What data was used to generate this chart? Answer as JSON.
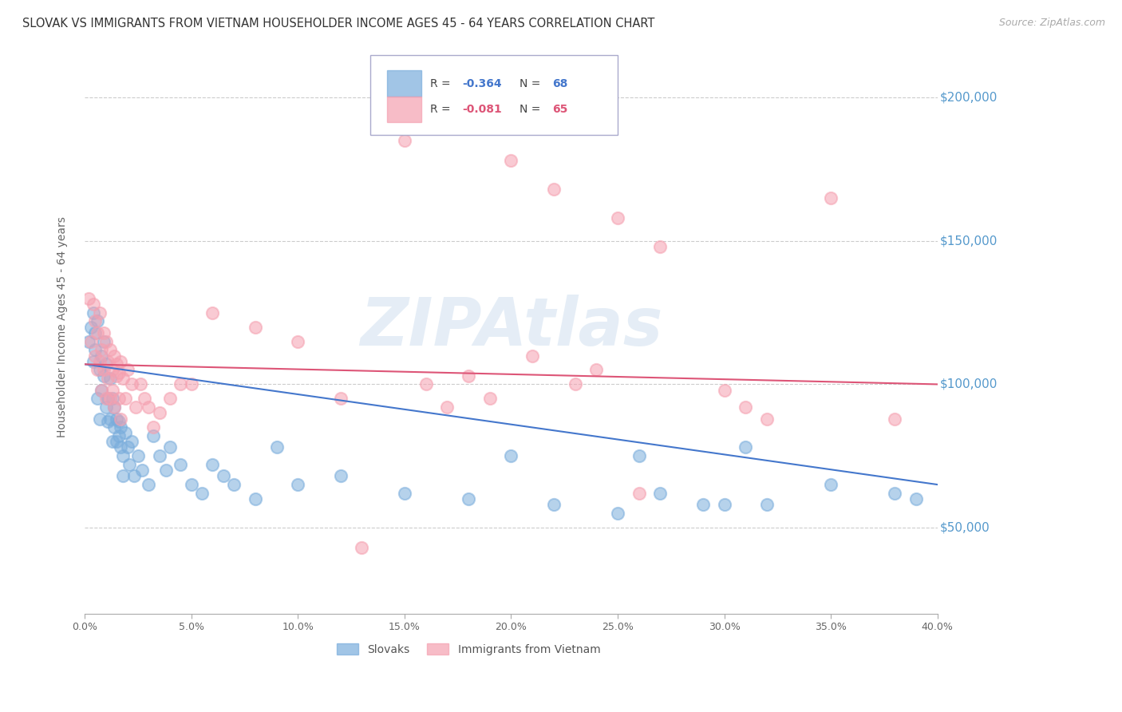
{
  "title": "SLOVAK VS IMMIGRANTS FROM VIETNAM HOUSEHOLDER INCOME AGES 45 - 64 YEARS CORRELATION CHART",
  "source": "Source: ZipAtlas.com",
  "ylabel": "Householder Income Ages 45 - 64 years",
  "xlim": [
    0.0,
    0.4
  ],
  "ylim": [
    20000,
    220000
  ],
  "yticks": [
    50000,
    100000,
    150000,
    200000
  ],
  "ytick_labels": [
    "$50,000",
    "$100,000",
    "$150,000",
    "$200,000"
  ],
  "xtick_vals": [
    0.0,
    0.05,
    0.1,
    0.15,
    0.2,
    0.25,
    0.3,
    0.35,
    0.4
  ],
  "xtick_labels": [
    "0.0%",
    "5.0%",
    "10.0%",
    "15.0%",
    "20.0%",
    "25.0%",
    "30.0%",
    "35.0%",
    "40.0%"
  ],
  "grid_color": "#cccccc",
  "background_color": "#ffffff",
  "blue_color": "#7aaddc",
  "pink_color": "#f5a0b0",
  "blue_line_color": "#4477cc",
  "pink_line_color": "#dd5577",
  "R_blue": -0.364,
  "N_blue": 68,
  "R_pink": -0.081,
  "N_pink": 65,
  "blue_scatter_x": [
    0.002,
    0.003,
    0.004,
    0.004,
    0.005,
    0.005,
    0.006,
    0.006,
    0.007,
    0.007,
    0.008,
    0.008,
    0.009,
    0.009,
    0.01,
    0.01,
    0.011,
    0.011,
    0.012,
    0.012,
    0.013,
    0.013,
    0.014,
    0.014,
    0.015,
    0.015,
    0.016,
    0.016,
    0.017,
    0.017,
    0.018,
    0.018,
    0.019,
    0.02,
    0.021,
    0.022,
    0.023,
    0.025,
    0.027,
    0.03,
    0.032,
    0.035,
    0.038,
    0.04,
    0.045,
    0.05,
    0.055,
    0.06,
    0.065,
    0.07,
    0.08,
    0.09,
    0.1,
    0.12,
    0.15,
    0.18,
    0.2,
    0.22,
    0.25,
    0.27,
    0.3,
    0.32,
    0.35,
    0.38,
    0.39,
    0.31,
    0.26,
    0.29
  ],
  "blue_scatter_y": [
    115000,
    120000,
    108000,
    125000,
    118000,
    112000,
    122000,
    95000,
    105000,
    88000,
    110000,
    98000,
    115000,
    103000,
    92000,
    107000,
    87000,
    95000,
    88000,
    102000,
    80000,
    95000,
    85000,
    92000,
    88000,
    80000,
    82000,
    87000,
    78000,
    85000,
    75000,
    68000,
    83000,
    78000,
    72000,
    80000,
    68000,
    75000,
    70000,
    65000,
    82000,
    75000,
    70000,
    78000,
    72000,
    65000,
    62000,
    72000,
    68000,
    65000,
    60000,
    78000,
    65000,
    68000,
    62000,
    60000,
    75000,
    58000,
    55000,
    62000,
    58000,
    58000,
    65000,
    62000,
    60000,
    78000,
    75000,
    58000
  ],
  "pink_scatter_x": [
    0.002,
    0.003,
    0.004,
    0.005,
    0.005,
    0.006,
    0.006,
    0.007,
    0.007,
    0.008,
    0.008,
    0.009,
    0.009,
    0.01,
    0.01,
    0.011,
    0.011,
    0.012,
    0.012,
    0.013,
    0.013,
    0.014,
    0.014,
    0.015,
    0.015,
    0.016,
    0.016,
    0.017,
    0.017,
    0.018,
    0.019,
    0.02,
    0.022,
    0.024,
    0.026,
    0.028,
    0.03,
    0.032,
    0.035,
    0.04,
    0.045,
    0.05,
    0.06,
    0.08,
    0.1,
    0.12,
    0.15,
    0.18,
    0.2,
    0.22,
    0.25,
    0.27,
    0.3,
    0.31,
    0.32,
    0.35,
    0.38,
    0.13,
    0.16,
    0.17,
    0.19,
    0.21,
    0.23,
    0.24,
    0.26
  ],
  "pink_scatter_y": [
    130000,
    115000,
    128000,
    122000,
    110000,
    118000,
    105000,
    125000,
    108000,
    112000,
    98000,
    118000,
    105000,
    115000,
    95000,
    108000,
    102000,
    112000,
    95000,
    105000,
    98000,
    110000,
    92000,
    107000,
    103000,
    104000,
    95000,
    108000,
    88000,
    102000,
    95000,
    105000,
    100000,
    92000,
    100000,
    95000,
    92000,
    85000,
    90000,
    95000,
    100000,
    100000,
    125000,
    120000,
    115000,
    95000,
    185000,
    103000,
    178000,
    168000,
    158000,
    148000,
    98000,
    92000,
    88000,
    165000,
    88000,
    43000,
    100000,
    92000,
    95000,
    110000,
    100000,
    105000,
    62000
  ],
  "title_fontsize": 10.5,
  "source_fontsize": 9,
  "ylabel_fontsize": 10,
  "tick_fontsize": 9,
  "watermark_text": "ZIPAtlas",
  "watermark_color": "#99bbdd",
  "watermark_alpha": 0.25,
  "watermark_fontsize": 60
}
